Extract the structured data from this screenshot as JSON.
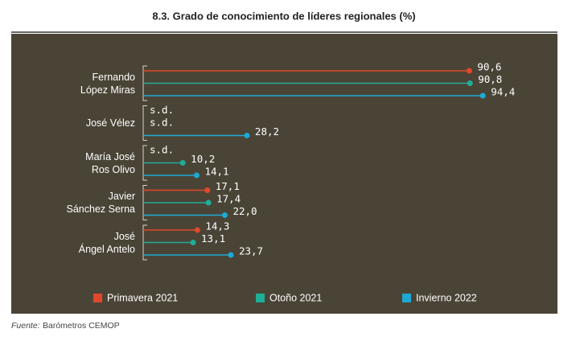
{
  "chart_data": {
    "type": "lollipop",
    "title": "8.3. Grado de conocimiento de líderes regionales (%)",
    "categories": [
      "Fernando\nLópez Miras",
      "José Vélez",
      "María José\nRos Olivo",
      "Javier\nSánchez Serna",
      "José\nÁngel Antelo"
    ],
    "series": [
      {
        "name": "Primavera 2021",
        "color": "#e2472c",
        "values": [
          90.6,
          null,
          null,
          17.1,
          14.3
        ],
        "value_labels": [
          "90,6",
          "s.d.",
          "s.d.",
          "17,1",
          "14,3"
        ]
      },
      {
        "name": "Otoño 2021",
        "color": "#1fae98",
        "values": [
          90.8,
          null,
          10.2,
          17.4,
          13.1
        ],
        "value_labels": [
          "90,8",
          "s.d.",
          "10,2",
          "17,4",
          "13,1"
        ]
      },
      {
        "name": "Invierno 2022",
        "color": "#1ea9d4",
        "values": [
          94.4,
          28.2,
          14.1,
          22.0,
          23.7
        ],
        "value_labels": [
          "94,4",
          "28,2",
          "14,1",
          "22,0",
          "23,7"
        ]
      }
    ],
    "xlim": [
      0,
      100
    ],
    "source_label": "Fuente:",
    "source": "Barómetros CEMOP"
  }
}
